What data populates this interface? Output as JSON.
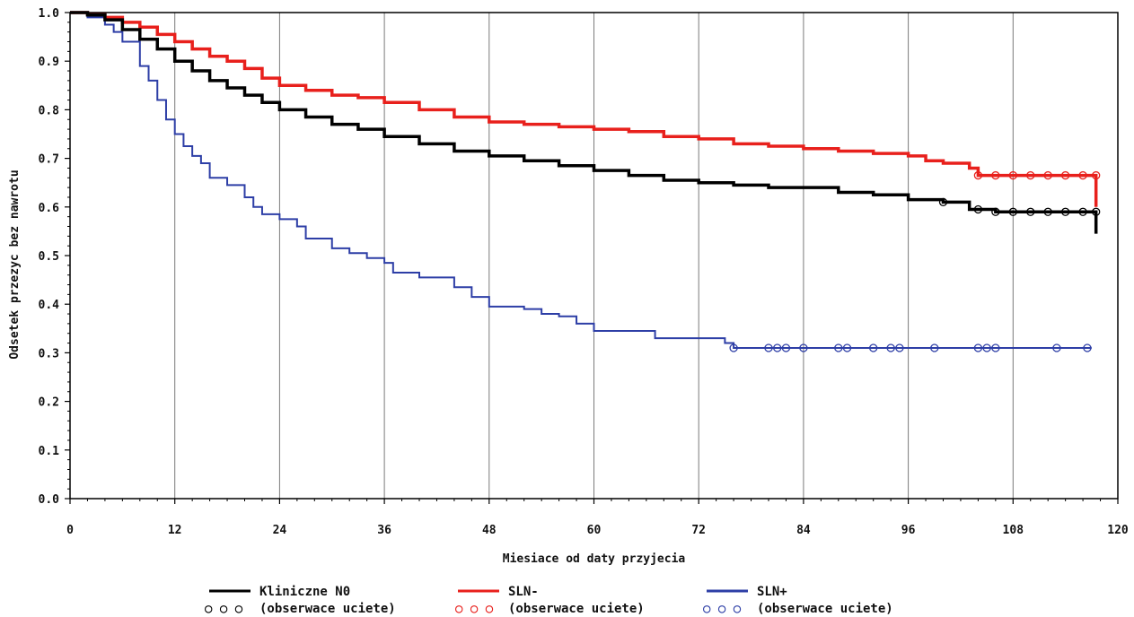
{
  "chart_data": {
    "type": "line",
    "subtype": "kaplan-meier",
    "title": "",
    "xlabel": "Miesiace od daty przyjecia",
    "ylabel": "Odsetek przezyc bez nawrotu",
    "xlim": [
      0,
      120
    ],
    "ylim": [
      0,
      1.0
    ],
    "xticks": [
      0,
      12,
      24,
      36,
      48,
      60,
      72,
      84,
      96,
      108,
      120
    ],
    "yticks": [
      0.0,
      0.1,
      0.2,
      0.3,
      0.4,
      0.5,
      0.6,
      0.7,
      0.8,
      0.9,
      1.0
    ],
    "xtick_labels": [
      "0",
      "12",
      "24",
      "36",
      "48",
      "60",
      "72",
      "84",
      "96",
      "108",
      "120"
    ],
    "ytick_labels": [
      "0.0",
      "0.1",
      "0.2",
      "0.3",
      "0.4",
      "0.5",
      "0.6",
      "0.7",
      "0.8",
      "0.9",
      "1.0"
    ],
    "grid": "vertical",
    "legend_position": "bottom",
    "series": [
      {
        "name": "Kliniczne N0",
        "censor_label": "(obserwace uciete)",
        "censor_symbols": "○ ○ ○",
        "color": "#000000",
        "x": [
          0,
          2,
          4,
          6,
          8,
          10,
          12,
          14,
          16,
          18,
          20,
          22,
          24,
          27,
          30,
          33,
          36,
          40,
          44,
          48,
          52,
          56,
          60,
          64,
          68,
          72,
          76,
          80,
          84,
          88,
          92,
          96,
          100,
          103,
          106,
          110,
          114,
          117.5,
          117.5
        ],
        "y": [
          1.0,
          0.995,
          0.985,
          0.965,
          0.945,
          0.925,
          0.9,
          0.88,
          0.86,
          0.845,
          0.83,
          0.815,
          0.8,
          0.785,
          0.77,
          0.76,
          0.745,
          0.73,
          0.715,
          0.705,
          0.695,
          0.685,
          0.675,
          0.665,
          0.655,
          0.65,
          0.645,
          0.64,
          0.64,
          0.63,
          0.625,
          0.615,
          0.61,
          0.595,
          0.59,
          0.59,
          0.59,
          0.59,
          0.545
        ],
        "censored_x": [
          100,
          104,
          106,
          108,
          110,
          112,
          114,
          116,
          117.5
        ],
        "censored_y": [
          0.61,
          0.595,
          0.59,
          0.59,
          0.59,
          0.59,
          0.59,
          0.59,
          0.59
        ]
      },
      {
        "name": "SLN-",
        "censor_label": "(obserwace uciete)",
        "censor_symbols": "○ ○ ○",
        "color": "#e8201c",
        "x": [
          0,
          2,
          4,
          6,
          8,
          10,
          12,
          14,
          16,
          18,
          20,
          22,
          24,
          27,
          30,
          33,
          36,
          40,
          44,
          48,
          52,
          56,
          60,
          64,
          68,
          72,
          76,
          80,
          84,
          88,
          92,
          96,
          98,
          100,
          103,
          104,
          106,
          110,
          114,
          117.5,
          117.5
        ],
        "y": [
          1.0,
          0.997,
          0.99,
          0.98,
          0.97,
          0.955,
          0.94,
          0.925,
          0.91,
          0.9,
          0.885,
          0.865,
          0.85,
          0.84,
          0.83,
          0.825,
          0.815,
          0.8,
          0.785,
          0.775,
          0.77,
          0.765,
          0.76,
          0.755,
          0.745,
          0.74,
          0.73,
          0.725,
          0.72,
          0.715,
          0.71,
          0.705,
          0.695,
          0.69,
          0.68,
          0.665,
          0.665,
          0.665,
          0.665,
          0.665,
          0.6
        ],
        "censored_x": [
          104,
          106,
          108,
          110,
          112,
          114,
          116,
          117.5
        ],
        "censored_y": [
          0.665,
          0.665,
          0.665,
          0.665,
          0.665,
          0.665,
          0.665,
          0.665
        ]
      },
      {
        "name": "SLN+",
        "censor_label": "(obserwace uciete)",
        "censor_symbols": "○ ○ ○",
        "color": "#2d3ea6",
        "x": [
          0,
          2,
          4,
          5,
          6,
          8,
          9,
          10,
          11,
          12,
          13,
          14,
          15,
          16,
          18,
          20,
          21,
          22,
          24,
          26,
          27,
          30,
          32,
          34,
          36,
          37,
          40,
          44,
          46,
          48,
          52,
          54,
          56,
          58,
          60,
          62,
          67,
          67,
          74,
          74,
          75,
          76,
          117
        ],
        "y": [
          1.0,
          0.99,
          0.975,
          0.96,
          0.94,
          0.89,
          0.86,
          0.82,
          0.78,
          0.75,
          0.725,
          0.705,
          0.69,
          0.66,
          0.645,
          0.62,
          0.6,
          0.585,
          0.575,
          0.56,
          0.535,
          0.515,
          0.505,
          0.495,
          0.485,
          0.465,
          0.455,
          0.435,
          0.415,
          0.395,
          0.39,
          0.38,
          0.375,
          0.36,
          0.345,
          0.345,
          0.345,
          0.33,
          0.33,
          0.33,
          0.32,
          0.31,
          0.31
        ],
        "censored_x": [
          76,
          80,
          81,
          82,
          84,
          88,
          89,
          92,
          94,
          95,
          99,
          104,
          105,
          106,
          113,
          116.5
        ],
        "censored_y": [
          0.31,
          0.31,
          0.31,
          0.31,
          0.31,
          0.31,
          0.31,
          0.31,
          0.31,
          0.31,
          0.31,
          0.31,
          0.31,
          0.31,
          0.31,
          0.31
        ]
      }
    ]
  }
}
